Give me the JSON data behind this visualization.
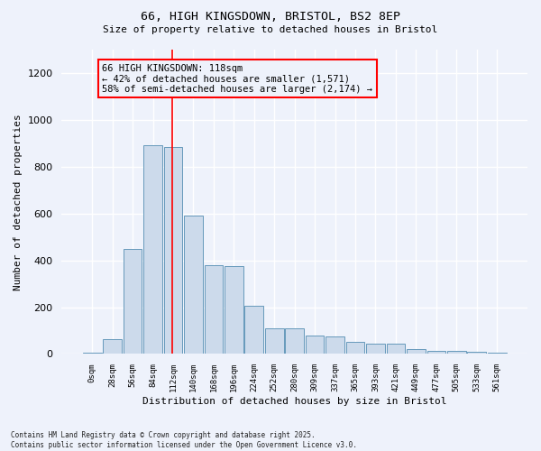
{
  "title1": "66, HIGH KINGSDOWN, BRISTOL, BS2 8EP",
  "title2": "Size of property relative to detached houses in Bristol",
  "xlabel": "Distribution of detached houses by size in Bristol",
  "ylabel": "Number of detached properties",
  "bar_labels": [
    "0sqm",
    "28sqm",
    "56sqm",
    "84sqm",
    "112sqm",
    "140sqm",
    "168sqm",
    "196sqm",
    "224sqm",
    "252sqm",
    "280sqm",
    "309sqm",
    "337sqm",
    "365sqm",
    "393sqm",
    "421sqm",
    "449sqm",
    "477sqm",
    "505sqm",
    "533sqm",
    "561sqm"
  ],
  "bar_values": [
    5,
    65,
    450,
    890,
    885,
    590,
    380,
    375,
    205,
    110,
    110,
    80,
    75,
    50,
    45,
    45,
    20,
    15,
    14,
    11,
    4
  ],
  "bar_color": "#ccdaeb",
  "bar_edge_color": "#6699bb",
  "red_line_x": 4,
  "annotation_text": "66 HIGH KINGSDOWN: 118sqm\n← 42% of detached houses are smaller (1,571)\n58% of semi-detached houses are larger (2,174) →",
  "ylim": [
    0,
    1300
  ],
  "yticks": [
    0,
    200,
    400,
    600,
    800,
    1000,
    1200
  ],
  "background_color": "#eef2fb",
  "grid_color": "#ffffff",
  "footnote": "Contains HM Land Registry data © Crown copyright and database right 2025.\nContains public sector information licensed under the Open Government Licence v3.0."
}
